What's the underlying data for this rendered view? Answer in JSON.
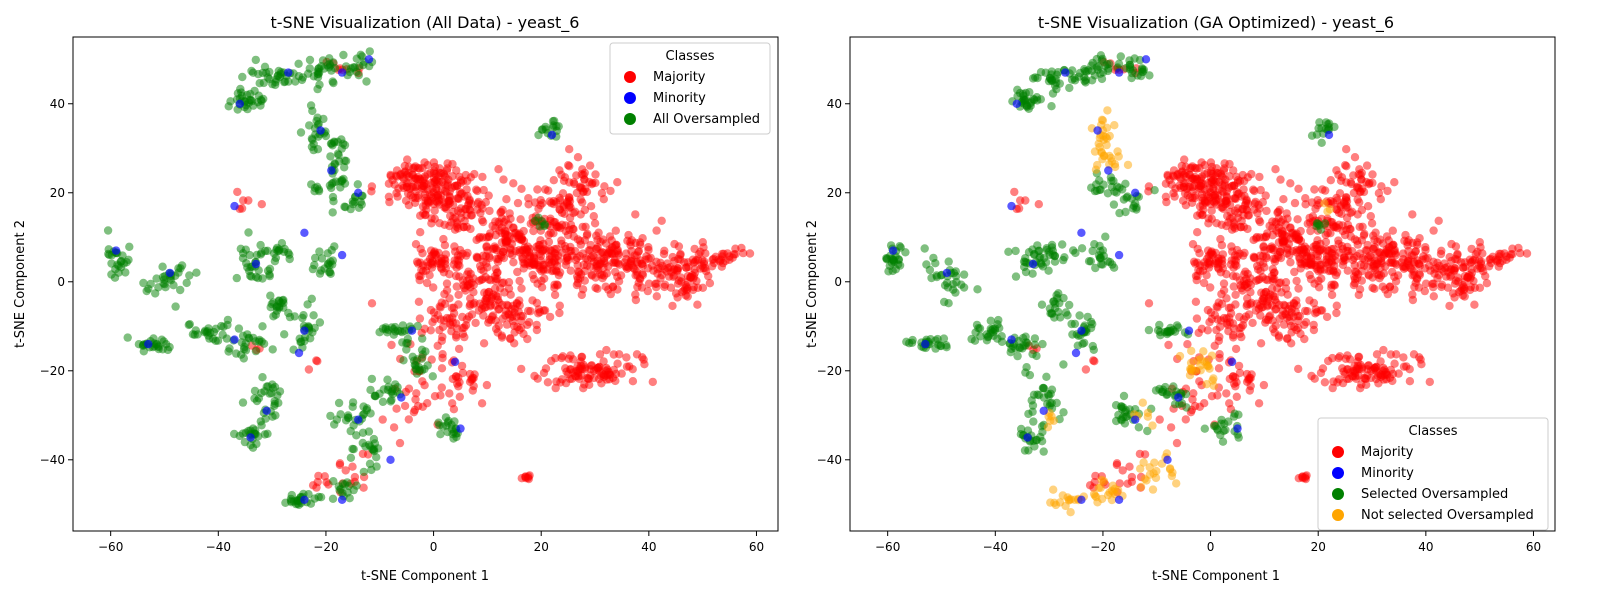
{
  "chart_data": [
    {
      "type": "scatter",
      "title": "t-SNE Visualization (All Data) - yeast_6",
      "xlabel": "t-SNE Component 1",
      "ylabel": "t-SNE Component 2",
      "xlim": [
        -67,
        64
      ],
      "ylim": [
        -56,
        55
      ],
      "xticks": [
        -60,
        -40,
        -20,
        0,
        20,
        40,
        60
      ],
      "yticks": [
        -40,
        -20,
        0,
        20,
        40
      ],
      "grid": false,
      "legend": {
        "title": "Classes",
        "position": "upper right",
        "entries": [
          "Majority",
          "Minority",
          "All Oversampled"
        ]
      },
      "series": [
        {
          "name": "Majority",
          "color": "#ff0000",
          "clusters": [
            [
              -2,
              22,
              5,
              4,
              120
            ],
            [
              4,
              18,
              6,
              5,
              110
            ],
            [
              12,
              10,
              4,
              5,
              80
            ],
            [
              2,
              5,
              4,
              4,
              60
            ],
            [
              10,
              0,
              5,
              5,
              80
            ],
            [
              20,
              5,
              5,
              5,
              110
            ],
            [
              22,
              15,
              5,
              5,
              80
            ],
            [
              28,
              22,
              4,
              4,
              40
            ],
            [
              30,
              5,
              6,
              5,
              120
            ],
            [
              40,
              3,
              6,
              5,
              100
            ],
            [
              48,
              2,
              4,
              4,
              60
            ],
            [
              54,
              6,
              3,
              2,
              20
            ],
            [
              3,
              -8,
              4,
              4,
              50
            ],
            [
              15,
              -8,
              5,
              4,
              70
            ],
            [
              28,
              -20,
              7,
              3,
              100
            ],
            [
              5,
              -22,
              3,
              4,
              30
            ],
            [
              -4,
              -25,
              4,
              8,
              30
            ],
            [
              -2,
              2,
              1,
              1,
              6
            ],
            [
              -35,
              17,
              2,
              2,
              6
            ],
            [
              -22,
              -18,
              1,
              1,
              3
            ],
            [
              -17,
              48,
              3,
              1.5,
              8
            ],
            [
              -15,
              -42,
              3,
              3,
              12
            ],
            [
              -20,
              -45,
              2,
              2,
              8
            ],
            [
              17.5,
              -44,
              0.6,
              0.5,
              8
            ],
            [
              -12,
              -5,
              0.5,
              0.5,
              1
            ],
            [
              -33,
              -15,
              1,
              1,
              3
            ]
          ]
        },
        {
          "name": "All Oversampled",
          "color": "#008000",
          "clusters": [
            [
              -27,
              46,
              5,
              2,
              40
            ],
            [
              -20,
              48,
              3,
              2,
              20
            ],
            [
              -14,
              48,
              3,
              2,
              20
            ],
            [
              -34,
              41,
              3,
              1.5,
              30
            ],
            [
              -22,
              34,
              2,
              4,
              25
            ],
            [
              -18,
              28,
              2,
              4,
              20
            ],
            [
              -19,
              22,
              3,
              2,
              20
            ],
            [
              -15,
              18,
              2,
              2,
              15
            ],
            [
              -59,
              5,
              1.5,
              3,
              25
            ],
            [
              -49,
              1,
              3,
              3,
              30
            ],
            [
              -33,
              4,
              3,
              3,
              30
            ],
            [
              -29,
              7,
              2,
              1.5,
              15
            ],
            [
              -20,
              5,
              2,
              3,
              20
            ],
            [
              -41,
              -11,
              3,
              2,
              25
            ],
            [
              -35,
              -14,
              3,
              2,
              25
            ],
            [
              -52,
              -14,
              3,
              1,
              25
            ],
            [
              -29,
              -6,
              2,
              2,
              20
            ],
            [
              -24,
              -12,
              2,
              4,
              25
            ],
            [
              -8,
              -11,
              3,
              1,
              20
            ],
            [
              -3,
              -18,
              2,
              3,
              20
            ],
            [
              -31,
              -27,
              2,
              5,
              30
            ],
            [
              -34,
              -35,
              2,
              2,
              20
            ],
            [
              -15,
              -30,
              3,
              3,
              25
            ],
            [
              -8,
              -25,
              3,
              2,
              20
            ],
            [
              -12,
              -38,
              2,
              3,
              20
            ],
            [
              -25,
              -49,
              3,
              1,
              25
            ],
            [
              -17,
              -47,
              2,
              2,
              15
            ],
            [
              3,
              -33,
              2,
              2,
              20
            ],
            [
              21,
              34,
              1.5,
              1.5,
              15
            ],
            [
              20,
              13,
              1,
              1,
              6
            ],
            [
              -5,
              -13,
              1,
              1,
              5
            ]
          ]
        },
        {
          "name": "Minority",
          "color": "#0000ff",
          "points": [
            [
              -59,
              7
            ],
            [
              -49,
              2
            ],
            [
              -33,
              4
            ],
            [
              -37,
              17
            ],
            [
              -36,
              40
            ],
            [
              -27,
              47
            ],
            [
              -17,
              47
            ],
            [
              -12,
              50
            ],
            [
              -21,
              34
            ],
            [
              -19,
              25
            ],
            [
              -14,
              20
            ],
            [
              -17,
              6
            ],
            [
              -24,
              11
            ],
            [
              -37,
              -13
            ],
            [
              -53,
              -14
            ],
            [
              -25,
              -16
            ],
            [
              -24,
              -11
            ],
            [
              -4,
              -11
            ],
            [
              4,
              -18
            ],
            [
              -31,
              -29
            ],
            [
              -34,
              -35
            ],
            [
              -14,
              -31
            ],
            [
              -6,
              -26
            ],
            [
              -17,
              -49
            ],
            [
              -24,
              -49
            ],
            [
              -8,
              -40
            ],
            [
              5,
              -33
            ],
            [
              22,
              33
            ]
          ]
        }
      ]
    },
    {
      "type": "scatter",
      "title": "t-SNE Visualization (GA Optimized) - yeast_6",
      "xlabel": "t-SNE Component 1",
      "ylabel": "t-SNE Component 2",
      "xlim": [
        -67,
        64
      ],
      "ylim": [
        -56,
        55
      ],
      "xticks": [
        -60,
        -40,
        -20,
        0,
        20,
        40,
        60
      ],
      "yticks": [
        -40,
        -20,
        0,
        20,
        40
      ],
      "grid": false,
      "legend": {
        "title": "Classes",
        "position": "lower right",
        "entries": [
          "Majority",
          "Minority",
          "Selected Oversampled",
          "Not selected Oversampled"
        ]
      },
      "series": [
        {
          "name": "Majority",
          "color": "#ff0000",
          "clusters": [
            [
              -2,
              22,
              5,
              4,
              120
            ],
            [
              4,
              18,
              6,
              5,
              110
            ],
            [
              12,
              10,
              4,
              5,
              80
            ],
            [
              2,
              5,
              4,
              4,
              60
            ],
            [
              10,
              0,
              5,
              5,
              80
            ],
            [
              20,
              5,
              5,
              5,
              110
            ],
            [
              22,
              15,
              5,
              5,
              80
            ],
            [
              28,
              22,
              4,
              4,
              40
            ],
            [
              30,
              5,
              6,
              5,
              120
            ],
            [
              40,
              3,
              6,
              5,
              100
            ],
            [
              48,
              2,
              4,
              4,
              60
            ],
            [
              54,
              6,
              3,
              2,
              20
            ],
            [
              3,
              -8,
              4,
              4,
              50
            ],
            [
              15,
              -8,
              5,
              4,
              70
            ],
            [
              28,
              -20,
              7,
              3,
              100
            ],
            [
              5,
              -22,
              3,
              4,
              30
            ],
            [
              -4,
              -25,
              4,
              8,
              30
            ],
            [
              -2,
              2,
              1,
              1,
              6
            ],
            [
              -35,
              17,
              2,
              2,
              6
            ],
            [
              -22,
              -18,
              1,
              1,
              3
            ],
            [
              -17,
              48,
              3,
              1.5,
              8
            ],
            [
              -15,
              -42,
              3,
              3,
              12
            ],
            [
              -20,
              -45,
              2,
              2,
              8
            ],
            [
              17.5,
              -44,
              0.6,
              0.5,
              8
            ],
            [
              -12,
              -5,
              0.5,
              0.5,
              1
            ],
            [
              -33,
              -15,
              1,
              1,
              3
            ]
          ]
        },
        {
          "name": "Selected Oversampled",
          "color": "#008000",
          "clusters": [
            [
              -27,
              46,
              5,
              2,
              40
            ],
            [
              -20,
              48,
              3,
              2,
              20
            ],
            [
              -14,
              48,
              3,
              2,
              20
            ],
            [
              -34,
              41,
              3,
              1.5,
              30
            ],
            [
              -19,
              22,
              3,
              2,
              20
            ],
            [
              -15,
              18,
              2,
              2,
              15
            ],
            [
              -59,
              5,
              1.5,
              3,
              25
            ],
            [
              -49,
              1,
              3,
              3,
              30
            ],
            [
              -33,
              4,
              3,
              3,
              30
            ],
            [
              -29,
              7,
              2,
              1.5,
              15
            ],
            [
              -20,
              5,
              2,
              3,
              20
            ],
            [
              -41,
              -11,
              3,
              2,
              25
            ],
            [
              -35,
              -14,
              3,
              2,
              25
            ],
            [
              -52,
              -14,
              3,
              1,
              25
            ],
            [
              -29,
              -6,
              2,
              2,
              20
            ],
            [
              -24,
              -12,
              2,
              4,
              25
            ],
            [
              -8,
              -11,
              3,
              1,
              20
            ],
            [
              -31,
              -27,
              2,
              5,
              30
            ],
            [
              -34,
              -35,
              2,
              2,
              20
            ],
            [
              -15,
              -30,
              3,
              3,
              25
            ],
            [
              -8,
              -25,
              3,
              2,
              20
            ],
            [
              3,
              -33,
              2,
              2,
              20
            ],
            [
              21,
              34,
              1.5,
              1.5,
              15
            ],
            [
              20,
              13,
              1,
              1,
              6
            ]
          ]
        },
        {
          "name": "Not selected Oversampled",
          "color": "#ffa500",
          "clusters": [
            [
              -20,
              33,
              1.5,
              5,
              25
            ],
            [
              -18,
              27,
              1.5,
              2,
              10
            ],
            [
              -2,
              -18,
              3,
              3,
              25
            ],
            [
              -10,
              -42,
              3,
              3,
              20
            ],
            [
              -25,
              -49,
              3,
              1.5,
              20
            ],
            [
              -19,
              -47,
              2,
              2,
              15
            ],
            [
              -30,
              -31,
              1,
              1.5,
              6
            ],
            [
              -13,
              -30,
              1.5,
              1.5,
              6
            ],
            [
              22,
              17,
              1,
              1,
              3
            ]
          ]
        },
        {
          "name": "Minority",
          "color": "#0000ff",
          "points": [
            [
              -59,
              7
            ],
            [
              -49,
              2
            ],
            [
              -33,
              4
            ],
            [
              -37,
              17
            ],
            [
              -36,
              40
            ],
            [
              -27,
              47
            ],
            [
              -17,
              47
            ],
            [
              -12,
              50
            ],
            [
              -21,
              34
            ],
            [
              -19,
              25
            ],
            [
              -14,
              20
            ],
            [
              -17,
              6
            ],
            [
              -24,
              11
            ],
            [
              -37,
              -13
            ],
            [
              -53,
              -14
            ],
            [
              -25,
              -16
            ],
            [
              -24,
              -11
            ],
            [
              -4,
              -11
            ],
            [
              4,
              -18
            ],
            [
              -31,
              -29
            ],
            [
              -34,
              -35
            ],
            [
              -14,
              -31
            ],
            [
              -6,
              -26
            ],
            [
              -17,
              -49
            ],
            [
              -24,
              -49
            ],
            [
              -8,
              -40
            ],
            [
              5,
              -33
            ],
            [
              22,
              33
            ]
          ]
        }
      ]
    }
  ]
}
